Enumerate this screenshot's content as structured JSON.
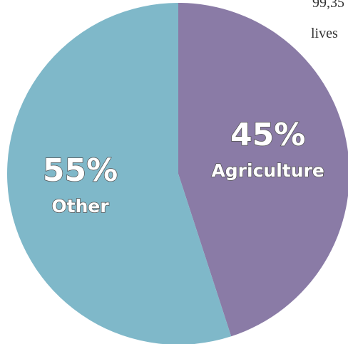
{
  "corner_text": {
    "line1": "99,35",
    "line2": "lives"
  },
  "chart_data": {
    "type": "pie",
    "slices": [
      {
        "label": "Agriculture",
        "value": 45,
        "value_label": "45%",
        "color": "#8a7ba6"
      },
      {
        "label": "Other",
        "value": 55,
        "value_label": "55%",
        "color": "#7fb8c9"
      }
    ],
    "start": "12 o'clock",
    "direction": "clockwise",
    "title": "",
    "legend": "none"
  }
}
